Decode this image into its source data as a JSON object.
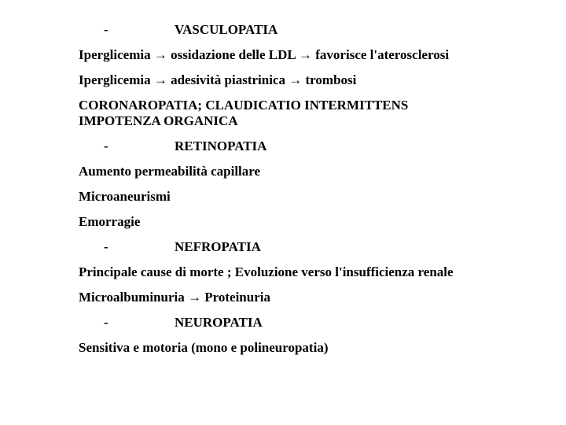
{
  "colors": {
    "background": "#ffffff",
    "text": "#000000"
  },
  "typography": {
    "font_family": "Times New Roman",
    "font_size_pt": 13,
    "font_weight": "bold"
  },
  "content": {
    "bullet1_dash": "-",
    "bullet1_text": "VASCULOPATIA",
    "line2": "Iperglicemia → ossidazione delle LDL → favorisce l'aterosclerosi",
    "line3": "Iperglicemia → adesività piastrinica → trombosi",
    "line4a": "CORONAROPATIA; CLAUDICATIO INTERMITTENS",
    "line4b": "IMPOTENZA ORGANICA",
    "bullet2_dash": "-",
    "bullet2_text": "RETINOPATIA",
    "line6": "Aumento permeabilità capillare",
    "line7": "Microaneurismi",
    "line8": "Emorragie",
    "bullet3_dash": "-",
    "bullet3_text": "NEFROPATIA",
    "line10": "Principale cause di morte ; Evoluzione verso l'insufficienza renale",
    "line11": "Microalbuminuria → Proteinuria",
    "bullet4_dash": "-",
    "bullet4_text": "NEUROPATIA",
    "line13": "Sensitiva e motoria (mono e polineuropatia)"
  }
}
